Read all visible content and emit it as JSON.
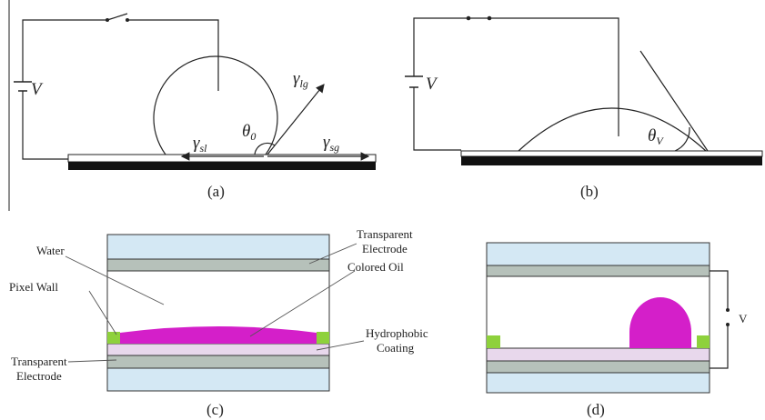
{
  "panel_a": {
    "voltage": "V",
    "gamma_lg": {
      "symbol": "γ",
      "subscript": "lg"
    },
    "theta": {
      "symbol": "θ",
      "subscript": "0"
    },
    "gamma_sl": {
      "symbol": "γ",
      "subscript": "sl"
    },
    "gamma_sg": {
      "symbol": "γ",
      "subscript": "sg"
    },
    "caption": "(a)"
  },
  "panel_b": {
    "voltage": "V",
    "theta": {
      "symbol": "θ",
      "subscript": "V"
    },
    "caption": "(b)"
  },
  "panel_c": {
    "water": "Water",
    "top_electrode": [
      "Transparent",
      "Electrode"
    ],
    "pixel_wall": "Pixel Wall",
    "colored_oil": "Colored Oil",
    "hydrophobic_coating": [
      "Hydrophobic",
      "Coating"
    ],
    "bottom_electrode": [
      "Transparent",
      "Electrode"
    ],
    "caption": "(c)"
  },
  "panel_d": {
    "voltage": "V",
    "caption": "(d)"
  }
}
